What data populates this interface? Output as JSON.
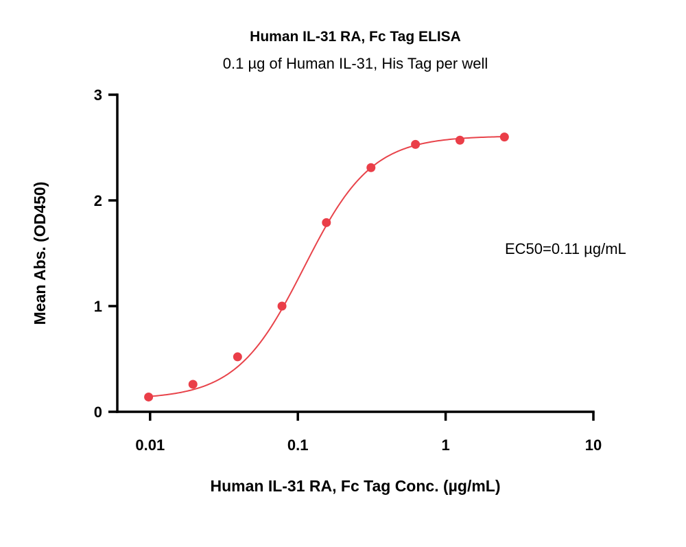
{
  "chart_data": {
    "type": "scatter",
    "title": "Human IL-31 RA, Fc Tag ELISA",
    "subtitle": "0.1 µg of Human IL-31, His Tag per well",
    "xlabel": "Human IL-31 RA, Fc Tag Conc. (µg/mL)",
    "ylabel": "Mean Abs. (OD450)",
    "x_scale": "log",
    "xlim": [
      0.006,
      10
    ],
    "ylim": [
      0,
      3
    ],
    "x_ticks": [
      0.01,
      0.1,
      1,
      10
    ],
    "x_tick_labels": [
      "0.01",
      "0.1",
      "1",
      "10"
    ],
    "y_ticks": [
      0,
      1,
      2,
      3
    ],
    "y_tick_labels": [
      "0",
      "1",
      "2",
      "3"
    ],
    "grid": false,
    "series": [
      {
        "color": "#ea3e48",
        "x": [
          0.00977,
          0.0195,
          0.0391,
          0.0781,
          0.156,
          0.3125,
          0.625,
          1.25,
          2.5
        ],
        "y": [
          0.14,
          0.26,
          0.52,
          1.0,
          1.79,
          2.31,
          2.53,
          2.57,
          2.6
        ]
      }
    ],
    "fit": {
      "model": "4PL",
      "bottom": 0.12,
      "top": 2.61,
      "ec50": 0.11,
      "hill": 1.9,
      "color": "#e8434a"
    },
    "annotation": "EC50=0.11 µg/mL"
  }
}
